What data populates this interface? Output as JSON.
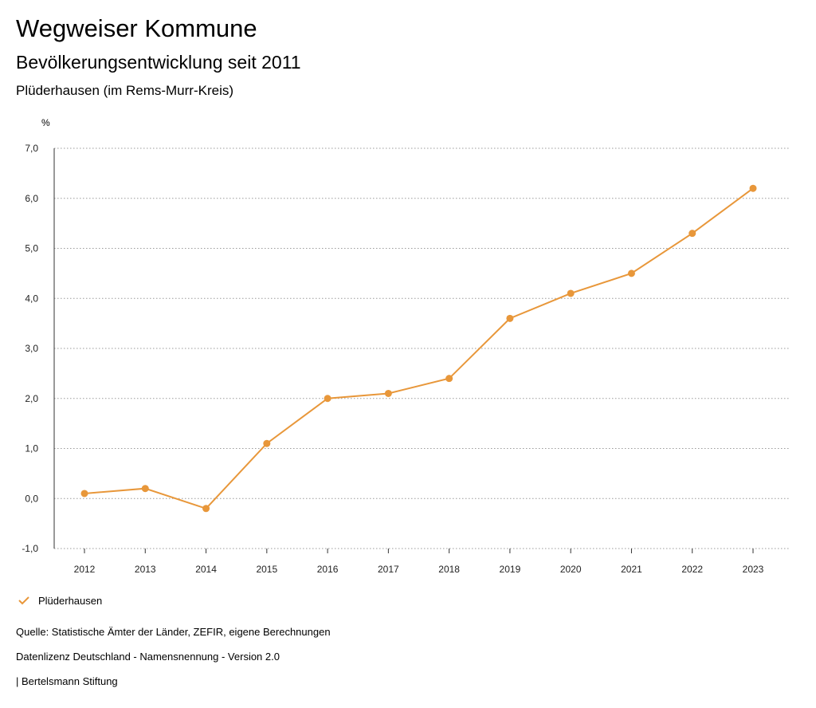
{
  "header": {
    "title": "Wegweiser Kommune",
    "subtitle": "Bevölkerungsentwicklung seit 2011",
    "region": "Plüderhausen (im Rems-Murr-Kreis)"
  },
  "chart_data": {
    "type": "line",
    "ylabel": "%",
    "ylim": [
      -1,
      7
    ],
    "yticks": [
      -1,
      0,
      1,
      2,
      3,
      4,
      5,
      6,
      7
    ],
    "ytick_labels": [
      "-1,0",
      "0,0",
      "1,0",
      "2,0",
      "3,0",
      "4,0",
      "5,0",
      "6,0",
      "7,0"
    ],
    "categories": [
      "2012",
      "2013",
      "2014",
      "2015",
      "2016",
      "2017",
      "2018",
      "2019",
      "2020",
      "2021",
      "2022",
      "2023"
    ],
    "series": [
      {
        "name": "Plüderhausen",
        "color": "#e8973a",
        "values": [
          0.1,
          0.2,
          -0.2,
          1.1,
          2.0,
          2.1,
          2.4,
          3.6,
          4.1,
          4.5,
          5.3,
          6.2
        ]
      }
    ],
    "grid": true
  },
  "legend": {
    "label": "Plüderhausen"
  },
  "footer": {
    "source": "Quelle: Statistische Ämter der Länder, ZEFIR, eigene Berechnungen",
    "license": "Datenlizenz Deutschland - Namensnennung - Version 2.0",
    "publisher": "| Bertelsmann Stiftung"
  }
}
